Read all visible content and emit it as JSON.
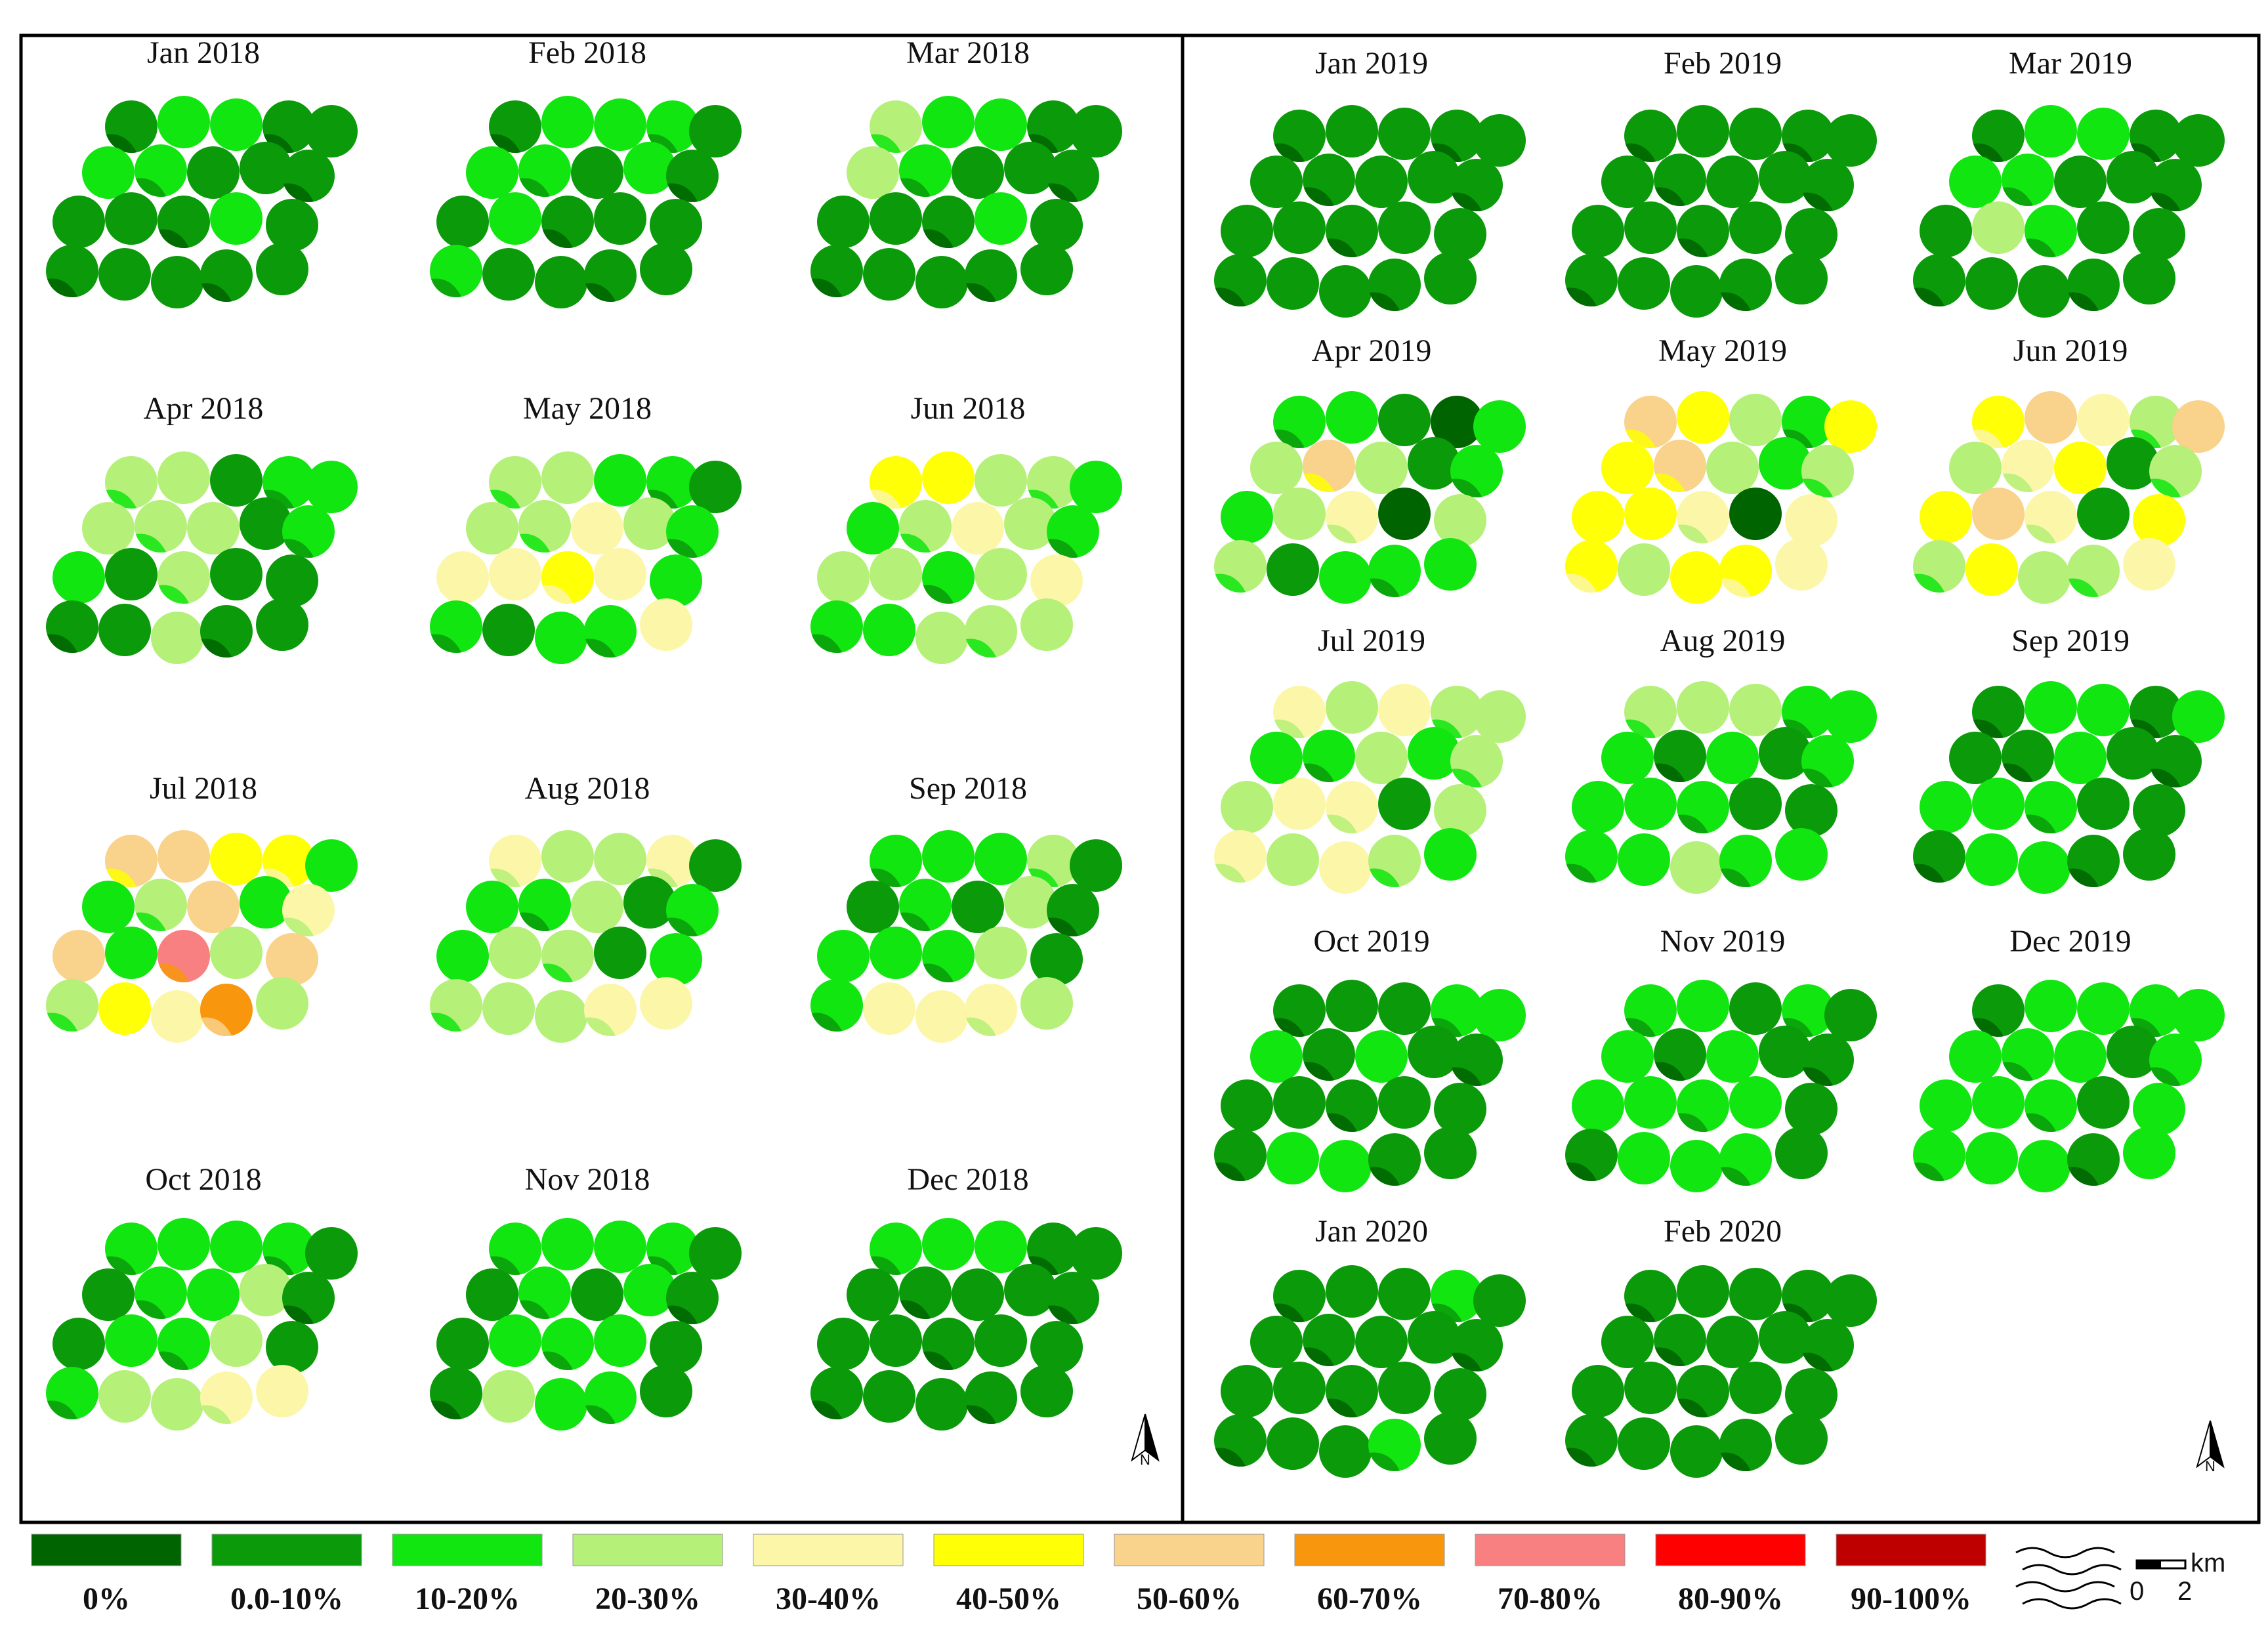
{
  "legend": {
    "classes": [
      {
        "label": "0%",
        "color": "#006400"
      },
      {
        "label": "0.0-10%",
        "color": "#0a9a0a"
      },
      {
        "label": "10-20%",
        "color": "#11e611"
      },
      {
        "label": "20-30%",
        "color": "#b5f078"
      },
      {
        "label": "30-40%",
        "color": "#fcf7a8"
      },
      {
        "label": "40-50%",
        "color": "#ffff05"
      },
      {
        "label": "50-60%",
        "color": "#f9d28b"
      },
      {
        "label": "60-70%",
        "color": "#f8960d"
      },
      {
        "label": "70-80%",
        "color": "#f98080"
      },
      {
        "label": "80-90%",
        "color": "#fe0000"
      },
      {
        "label": "90-100%",
        "color": "#bf0000"
      }
    ],
    "water_symbol_icon": "river-waves-icon",
    "scale_bar": {
      "unit": "km",
      "tick_start": "0",
      "tick_end": "2"
    }
  },
  "north_arrow": {
    "label": "N",
    "icon": "north-arrow-icon"
  },
  "frames": [
    {
      "name": "2018",
      "panels": [
        {
          "title": "Jan 2018",
          "fills": [
            1,
            2,
            2,
            1,
            1,
            2,
            2,
            1,
            1,
            1,
            1,
            1,
            1,
            2,
            1,
            1,
            1,
            1,
            1,
            1
          ]
        },
        {
          "title": "Feb 2018",
          "fills": [
            1,
            2,
            2,
            2,
            1,
            2,
            2,
            1,
            2,
            1,
            1,
            2,
            1,
            1,
            1,
            2,
            1,
            1,
            1,
            1
          ]
        },
        {
          "title": "Mar 2018",
          "fills": [
            3,
            2,
            2,
            1,
            1,
            3,
            2,
            1,
            1,
            1,
            1,
            1,
            1,
            2,
            1,
            1,
            1,
            1,
            1,
            1
          ]
        },
        {
          "title": "Apr 2018",
          "fills": [
            3,
            3,
            1,
            2,
            2,
            3,
            3,
            3,
            1,
            2,
            2,
            1,
            3,
            1,
            1,
            1,
            1,
            3,
            1,
            1
          ]
        },
        {
          "title": "May 2018",
          "fills": [
            3,
            3,
            2,
            2,
            1,
            3,
            3,
            4,
            3,
            2,
            4,
            4,
            5,
            4,
            2,
            2,
            1,
            2,
            2,
            4
          ]
        },
        {
          "title": "Jun 2018",
          "fills": [
            5,
            5,
            3,
            3,
            2,
            2,
            3,
            4,
            3,
            2,
            3,
            3,
            2,
            3,
            4,
            2,
            2,
            3,
            3,
            3
          ]
        },
        {
          "title": "Jul 2018",
          "fills": [
            6,
            6,
            5,
            5,
            2,
            2,
            3,
            6,
            2,
            4,
            6,
            2,
            8,
            3,
            6,
            3,
            5,
            4,
            7,
            3
          ]
        },
        {
          "title": "Aug 2018",
          "fills": [
            4,
            3,
            3,
            4,
            1,
            2,
            2,
            3,
            1,
            2,
            2,
            3,
            3,
            1,
            2,
            3,
            3,
            3,
            4,
            4
          ]
        },
        {
          "title": "Sep 2018",
          "fills": [
            2,
            2,
            2,
            3,
            1,
            1,
            2,
            1,
            3,
            1,
            2,
            2,
            2,
            3,
            1,
            2,
            4,
            4,
            4,
            3
          ]
        },
        {
          "title": "Oct 2018",
          "fills": [
            2,
            2,
            2,
            2,
            1,
            1,
            2,
            2,
            3,
            1,
            1,
            2,
            2,
            3,
            1,
            2,
            3,
            3,
            4,
            4
          ]
        },
        {
          "title": "Nov 2018",
          "fills": [
            2,
            2,
            2,
            2,
            1,
            1,
            2,
            1,
            2,
            1,
            1,
            2,
            2,
            2,
            1,
            1,
            3,
            2,
            2,
            1
          ]
        },
        {
          "title": "Dec 2018",
          "fills": [
            2,
            2,
            2,
            1,
            1,
            1,
            1,
            1,
            1,
            1,
            1,
            1,
            1,
            1,
            1,
            1,
            1,
            1,
            1,
            1
          ]
        }
      ]
    },
    {
      "name": "2019-2020",
      "panels": [
        {
          "title": "Jan 2019",
          "fills": [
            1,
            1,
            1,
            1,
            1,
            1,
            1,
            1,
            1,
            1,
            1,
            1,
            1,
            1,
            1,
            1,
            1,
            1,
            1,
            1
          ]
        },
        {
          "title": "Feb 2019",
          "fills": [
            1,
            1,
            1,
            1,
            1,
            1,
            1,
            1,
            1,
            1,
            1,
            1,
            1,
            1,
            1,
            1,
            1,
            1,
            1,
            1
          ]
        },
        {
          "title": "Mar 2019",
          "fills": [
            1,
            2,
            2,
            1,
            1,
            2,
            2,
            1,
            1,
            1,
            1,
            3,
            2,
            1,
            1,
            1,
            1,
            1,
            1,
            1
          ]
        },
        {
          "title": "Apr 2019",
          "fills": [
            2,
            2,
            1,
            0,
            2,
            3,
            6,
            3,
            1,
            2,
            2,
            3,
            4,
            0,
            3,
            3,
            1,
            2,
            2,
            2
          ]
        },
        {
          "title": "May 2019",
          "fills": [
            6,
            5,
            3,
            2,
            5,
            5,
            6,
            3,
            2,
            3,
            5,
            5,
            4,
            0,
            4,
            5,
            3,
            5,
            5,
            4
          ]
        },
        {
          "title": "Jun 2019",
          "fills": [
            5,
            6,
            4,
            3,
            6,
            3,
            4,
            5,
            1,
            3,
            5,
            6,
            4,
            1,
            5,
            3,
            5,
            3,
            3,
            4
          ]
        },
        {
          "title": "Jul 2019",
          "fills": [
            4,
            3,
            4,
            3,
            3,
            2,
            2,
            3,
            2,
            3,
            3,
            4,
            4,
            1,
            3,
            4,
            3,
            4,
            3,
            2
          ]
        },
        {
          "title": "Aug 2019",
          "fills": [
            3,
            3,
            3,
            2,
            2,
            2,
            1,
            2,
            1,
            2,
            2,
            2,
            2,
            1,
            1,
            2,
            2,
            3,
            2,
            2
          ]
        },
        {
          "title": "Sep 2019",
          "fills": [
            1,
            2,
            2,
            1,
            2,
            1,
            1,
            2,
            1,
            1,
            2,
            2,
            2,
            1,
            1,
            1,
            2,
            2,
            1,
            1
          ]
        },
        {
          "title": "Oct 2019",
          "fills": [
            1,
            1,
            1,
            2,
            2,
            2,
            1,
            2,
            1,
            1,
            1,
            1,
            1,
            1,
            1,
            1,
            2,
            2,
            1,
            1
          ]
        },
        {
          "title": "Nov 2019",
          "fills": [
            2,
            2,
            1,
            2,
            1,
            2,
            1,
            2,
            1,
            1,
            2,
            2,
            2,
            2,
            1,
            1,
            2,
            2,
            2,
            1
          ]
        },
        {
          "title": "Dec 2019",
          "fills": [
            1,
            2,
            2,
            2,
            2,
            2,
            2,
            2,
            1,
            2,
            2,
            2,
            2,
            1,
            2,
            2,
            2,
            2,
            1,
            2
          ]
        },
        {
          "title": "Jan 2020",
          "fills": [
            1,
            1,
            1,
            2,
            1,
            1,
            1,
            1,
            1,
            1,
            1,
            1,
            1,
            1,
            1,
            1,
            1,
            1,
            2,
            1
          ]
        },
        {
          "title": "Feb 2020",
          "fills": [
            1,
            1,
            1,
            1,
            1,
            1,
            1,
            1,
            1,
            1,
            1,
            1,
            1,
            1,
            1,
            1,
            1,
            1,
            1,
            1
          ]
        }
      ]
    }
  ]
}
